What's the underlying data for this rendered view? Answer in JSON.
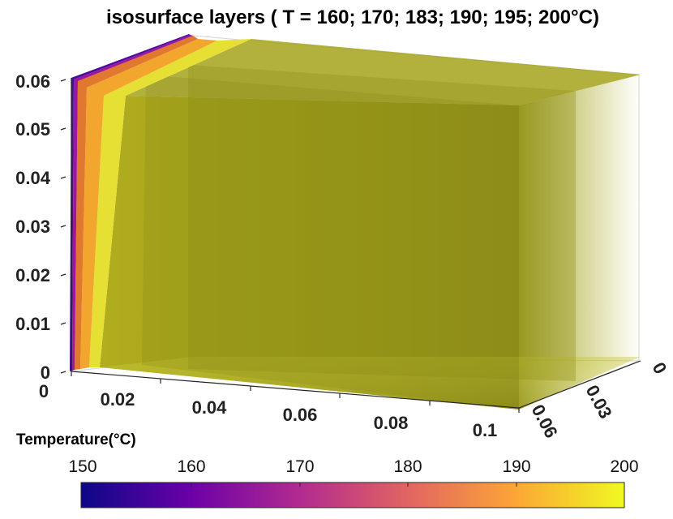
{
  "chart_data": {
    "type": "isosurface",
    "title": "isosurface layers ( T = 160; 170; 183; 190; 195; 200°C)",
    "isovalues": [
      160,
      170,
      183,
      190,
      195,
      200
    ],
    "x_ticks": [
      "0",
      "0.02",
      "0.04",
      "0.06",
      "0.08",
      "0.1"
    ],
    "y_ticks": [
      "0",
      "0.03",
      "0.06"
    ],
    "z_ticks": [
      "0",
      "0.01",
      "0.02",
      "0.03",
      "0.04",
      "0.05",
      "0.06"
    ],
    "xlim": [
      0,
      0.1
    ],
    "ylim": [
      0,
      0.06
    ],
    "zlim": [
      0,
      0.06
    ],
    "grid": true,
    "colormap": "plasma",
    "colorbar": {
      "label": "Temperature(°C)",
      "ticks": [
        "150",
        "160",
        "170",
        "180",
        "190",
        "200"
      ],
      "range": [
        150,
        200
      ],
      "colors": [
        "#0d0887",
        "#6a00a8",
        "#b12a90",
        "#e16462",
        "#fca636",
        "#f0f921"
      ]
    },
    "layer_colors": {
      "160": "#5c10a0",
      "170": "#9c179e",
      "183": "#e07b40",
      "190": "#f0a830",
      "195": "#e8e030",
      "200": "#b5b51c"
    }
  }
}
